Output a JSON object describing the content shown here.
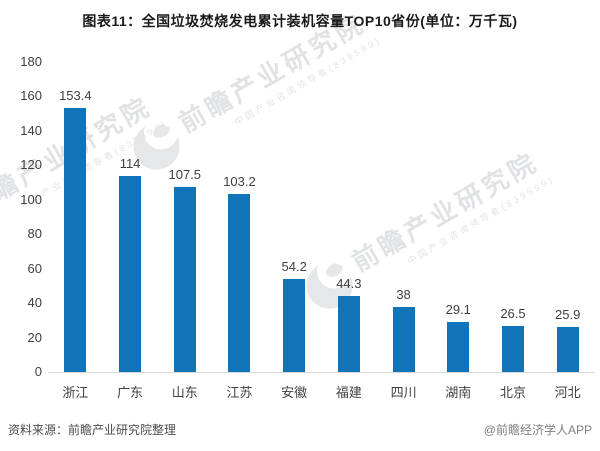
{
  "chart_data": {
    "type": "bar",
    "title": "图表11：全国垃圾焚烧发电累计装机容量TOP10省份(单位：万千瓦)",
    "categories": [
      "浙江",
      "广东",
      "山东",
      "江苏",
      "安徽",
      "福建",
      "四川",
      "湖南",
      "北京",
      "河北"
    ],
    "values": [
      153.4,
      114,
      107.5,
      103.2,
      54.2,
      44.3,
      38,
      29.1,
      26.5,
      25.9
    ],
    "unit": "万千瓦",
    "xlabel": "",
    "ylabel": "",
    "ylim": [
      0,
      180
    ],
    "y_ticks": [
      0,
      20,
      40,
      60,
      80,
      100,
      120,
      140,
      160,
      180
    ],
    "grid": false,
    "legend": false,
    "bar_color": "#1274B8",
    "value_label_color": "#404040",
    "axis_line_color": "#D9D9D9"
  },
  "watermark": {
    "brand": "前瞻产业研究院",
    "subtitle": "中国产业咨询领导者(839599)"
  },
  "footer": {
    "source": "资料来源：前瞻产业研究院整理",
    "credit": "@前瞻经济学人APP"
  }
}
